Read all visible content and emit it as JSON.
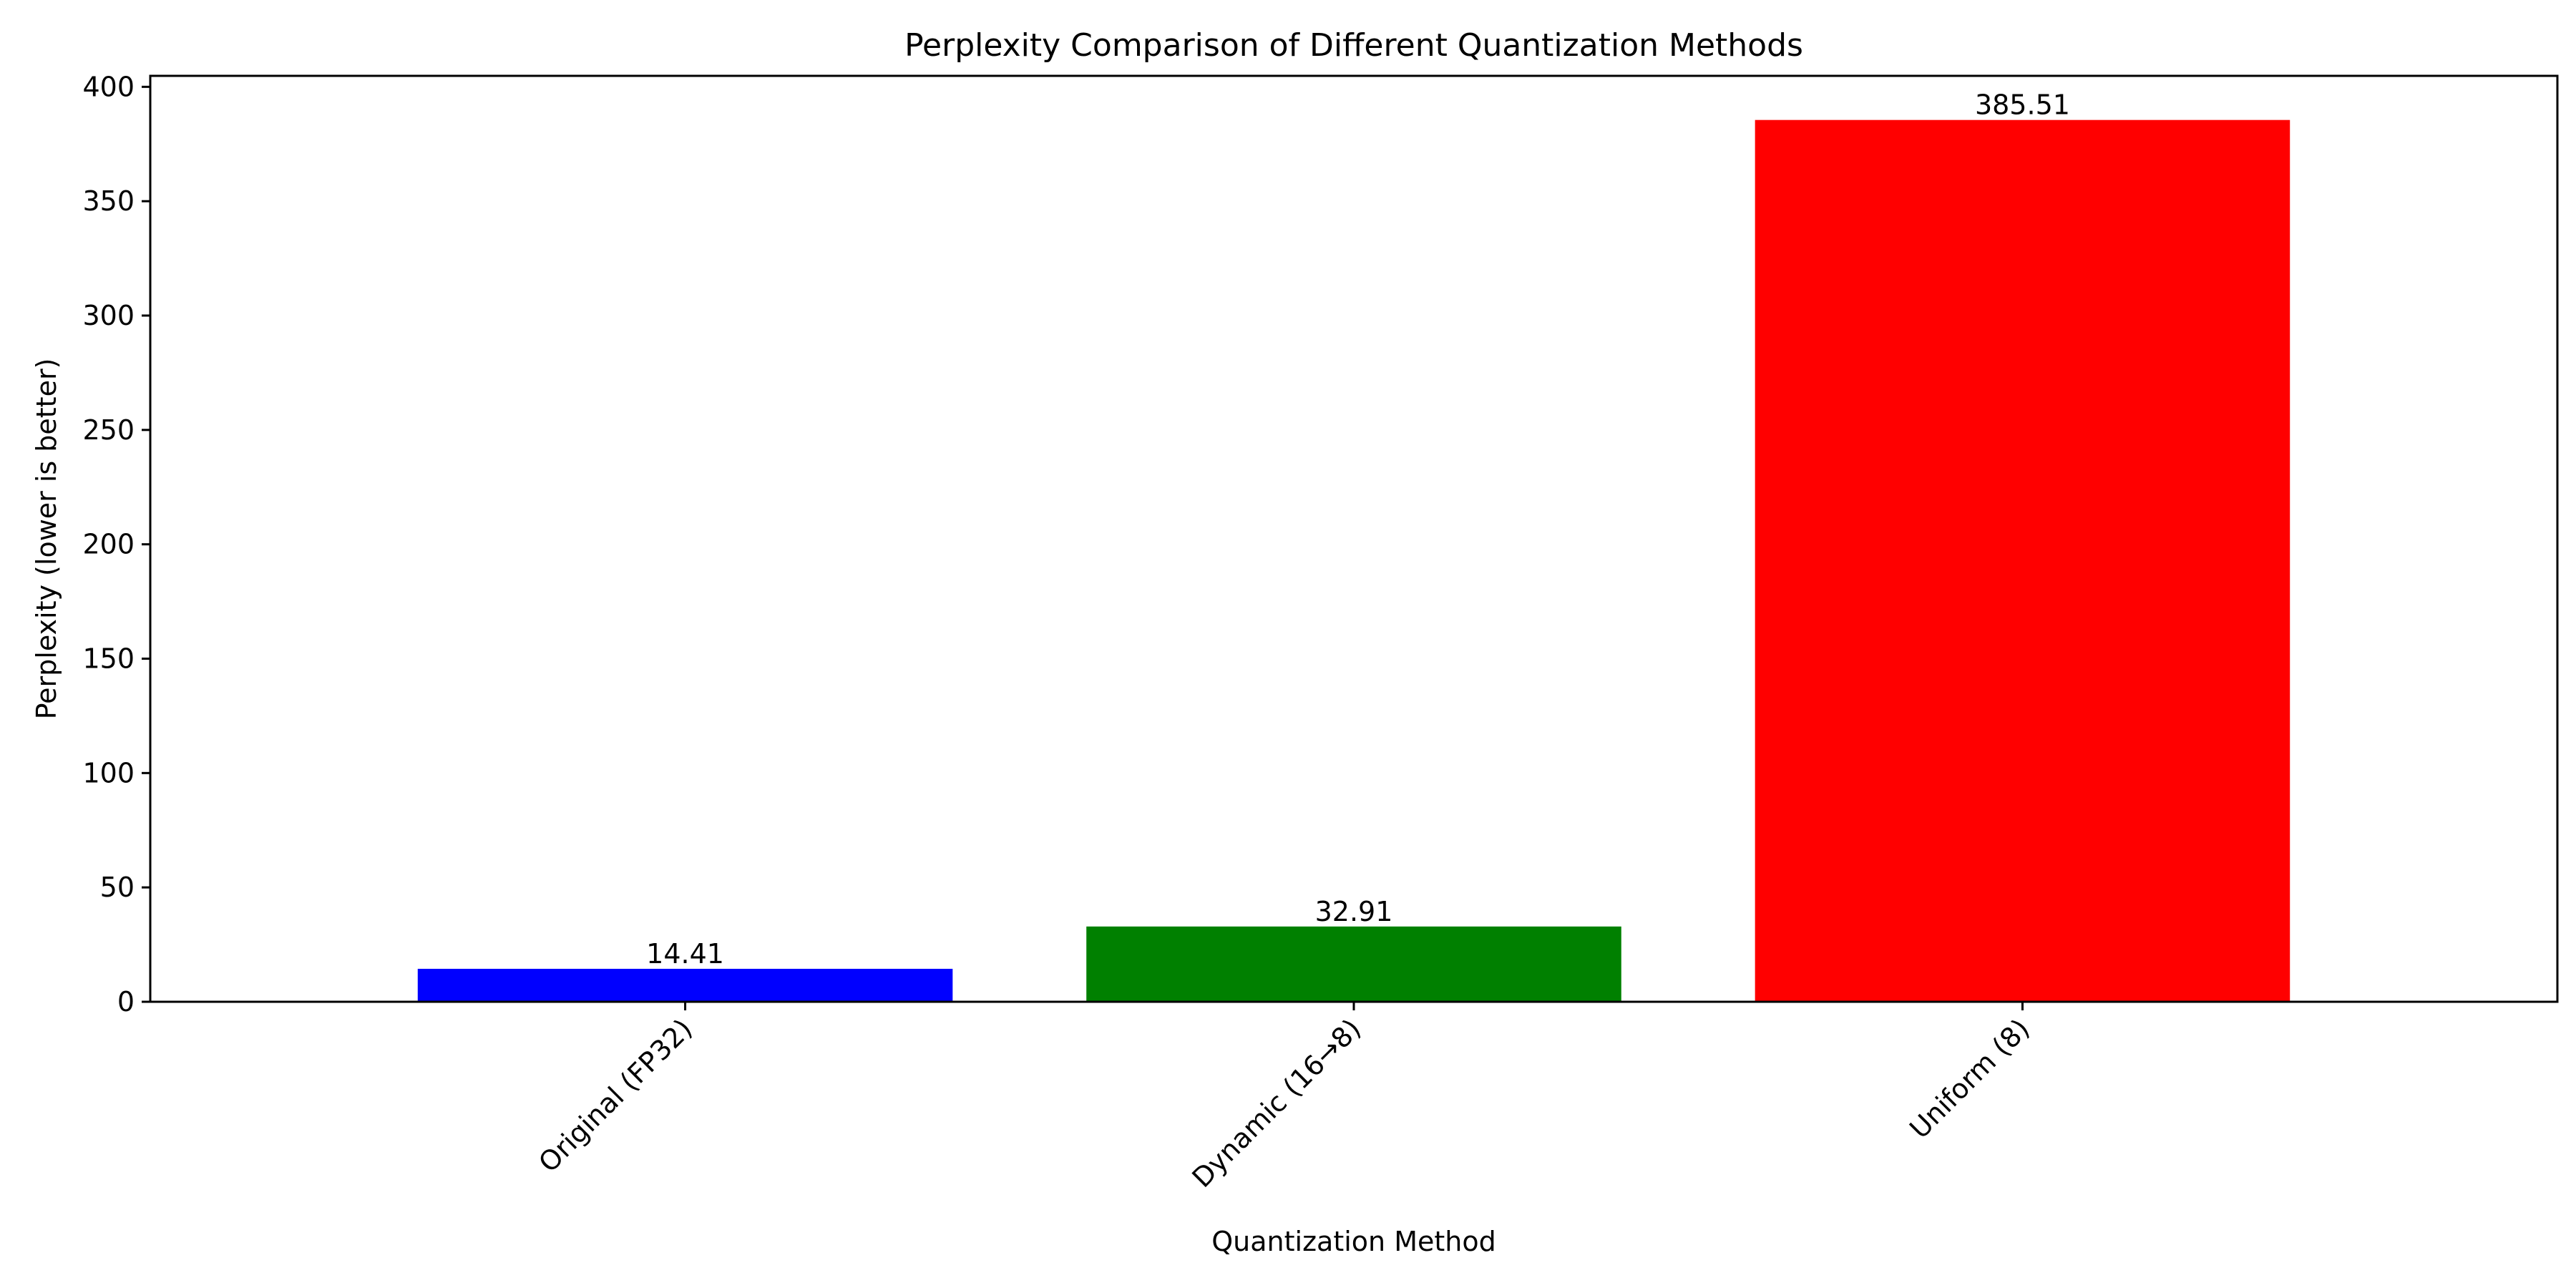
{
  "chart_data": {
    "type": "bar",
    "title": "Perplexity Comparison of Different Quantization Methods",
    "xlabel": "Quantization Method",
    "ylabel": "Perplexity (lower is better)",
    "categories": [
      "Original (FP32)",
      "Dynamic (16→8)",
      "Uniform (8)"
    ],
    "values": [
      14.41,
      32.91,
      385.51
    ],
    "value_labels": [
      "14.41",
      "32.91",
      "385.51"
    ],
    "colors": [
      "#0000ff",
      "#008000",
      "#ff0000"
    ],
    "ylim": [
      0,
      404.8
    ],
    "yticks": [
      0,
      50,
      100,
      150,
      200,
      250,
      300,
      350,
      400
    ],
    "ytick_labels": [
      "0",
      "50",
      "100",
      "150",
      "200",
      "250",
      "300",
      "350",
      "400"
    ],
    "grid": false,
    "legend": "none"
  }
}
